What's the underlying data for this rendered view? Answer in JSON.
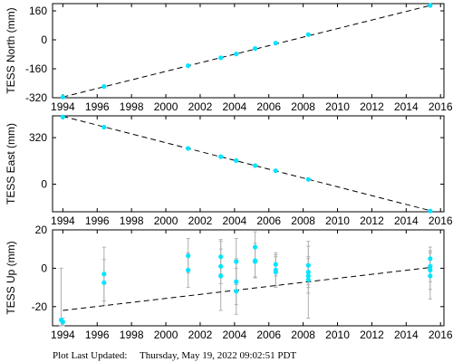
{
  "footer": {
    "label": "Plot Last Updated:",
    "timestamp": "Thursday, May 19, 2022 09:02:51 PDT"
  },
  "colors": {
    "point": "#00e5ff",
    "errorbar": "#b0b0b0",
    "trend": "#000000"
  },
  "chart_data": [
    {
      "type": "scatter",
      "ylabel": "TESS North (mm)",
      "xlim": [
        1993.4,
        2016.2
      ],
      "ylim": [
        -320,
        200
      ],
      "x_ticks": [
        1994,
        1996,
        1998,
        2000,
        2002,
        2004,
        2006,
        2008,
        2010,
        2012,
        2014,
        2016
      ],
      "y_ticks": [
        -320,
        -160,
        0,
        160
      ],
      "trend": {
        "x": [
          1994.0,
          2015.5
        ],
        "y": [
          -316,
          192
        ]
      },
      "points": [
        {
          "x": 1994.0,
          "y": -316
        },
        {
          "x": 1996.4,
          "y": -258
        },
        {
          "x": 2001.3,
          "y": -143
        },
        {
          "x": 2003.2,
          "y": -99
        },
        {
          "x": 2004.1,
          "y": -78
        },
        {
          "x": 2005.2,
          "y": -48
        },
        {
          "x": 2006.4,
          "y": -18
        },
        {
          "x": 2008.3,
          "y": 29
        },
        {
          "x": 2015.4,
          "y": 190
        }
      ]
    },
    {
      "type": "scatter",
      "ylabel": "TESS East (mm)",
      "xlim": [
        1993.4,
        2016.2
      ],
      "ylim": [
        -190,
        470
      ],
      "x_ticks": [
        1994,
        1996,
        1998,
        2000,
        2002,
        2004,
        2006,
        2008,
        2010,
        2012,
        2014,
        2016
      ],
      "y_ticks": [
        0,
        320
      ],
      "trend": {
        "x": [
          1994.0,
          2015.5
        ],
        "y": [
          467,
          -185
        ]
      },
      "points": [
        {
          "x": 1994.0,
          "y": 462
        },
        {
          "x": 1996.4,
          "y": 392
        },
        {
          "x": 2001.3,
          "y": 246
        },
        {
          "x": 2003.2,
          "y": 189
        },
        {
          "x": 2004.1,
          "y": 162
        },
        {
          "x": 2005.2,
          "y": 128
        },
        {
          "x": 2006.4,
          "y": 92
        },
        {
          "x": 2008.3,
          "y": 33
        },
        {
          "x": 2015.4,
          "y": -185
        }
      ]
    },
    {
      "type": "scatter",
      "ylabel": "TESS Up (mm)",
      "xlim": [
        1993.4,
        2016.2
      ],
      "ylim": [
        -30,
        20
      ],
      "x_ticks": [
        1994,
        1996,
        1998,
        2000,
        2002,
        2004,
        2006,
        2008,
        2010,
        2012,
        2014,
        2016
      ],
      "y_ticks": [
        -20,
        0,
        20
      ],
      "trend": {
        "x": [
          1994.0,
          2015.5
        ],
        "y": [
          -22,
          0.5
        ]
      },
      "points": [
        {
          "x": 1993.9,
          "y": -27,
          "err": 27
        },
        {
          "x": 1994.0,
          "y": -28,
          "err": 2
        },
        {
          "x": 1996.4,
          "y": -3,
          "err": 14
        },
        {
          "x": 1996.4,
          "y": -7.5,
          "err": 12
        },
        {
          "x": 2001.3,
          "y": 6.5,
          "err": 9
        },
        {
          "x": 2001.3,
          "y": -1,
          "err": 9
        },
        {
          "x": 2003.2,
          "y": 6,
          "err": 9
        },
        {
          "x": 2003.2,
          "y": 1,
          "err": 9
        },
        {
          "x": 2003.2,
          "y": -4,
          "err": 18
        },
        {
          "x": 2004.1,
          "y": 3.5,
          "err": 12
        },
        {
          "x": 2004.1,
          "y": -7,
          "err": 12
        },
        {
          "x": 2004.1,
          "y": -12,
          "err": 12
        },
        {
          "x": 2005.2,
          "y": 11,
          "err": 8
        },
        {
          "x": 2005.2,
          "y": 4,
          "err": 9
        },
        {
          "x": 2005.2,
          "y": 3.5,
          "err": 8
        },
        {
          "x": 2006.4,
          "y": 2,
          "err": 6
        },
        {
          "x": 2006.4,
          "y": -1,
          "err": 8
        },
        {
          "x": 2006.4,
          "y": -2,
          "err": 8
        },
        {
          "x": 2008.3,
          "y": 1.5,
          "err": 10
        },
        {
          "x": 2008.3,
          "y": -2,
          "err": 8
        },
        {
          "x": 2008.3,
          "y": -4,
          "err": 9
        },
        {
          "x": 2008.3,
          "y": -6,
          "err": 20
        },
        {
          "x": 2015.4,
          "y": 5,
          "err": 6
        },
        {
          "x": 2015.4,
          "y": 1,
          "err": 8
        },
        {
          "x": 2015.4,
          "y": -1,
          "err": 10
        },
        {
          "x": 2015.4,
          "y": -4,
          "err": 12
        }
      ]
    }
  ]
}
